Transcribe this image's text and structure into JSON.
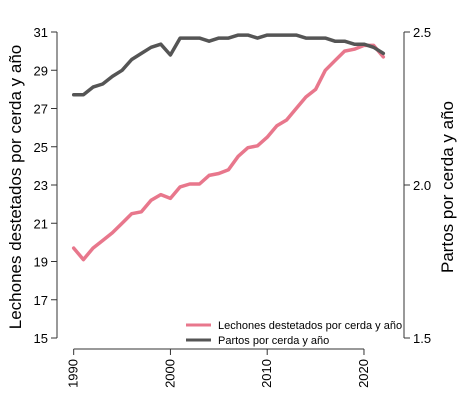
{
  "chart_data": {
    "type": "line",
    "xlabel": "",
    "ylabel_left": "Lechones destetados por cerda y año",
    "ylabel_right": "Partos por cerda y año",
    "xlim": [
      1989,
      2023
    ],
    "ylim_left": [
      15,
      31
    ],
    "ylim_right": [
      1.5,
      2.5
    ],
    "x_ticks": [
      1990,
      2000,
      2010,
      2020
    ],
    "y_ticks_left": [
      15,
      17,
      19,
      21,
      23,
      25,
      27,
      29,
      31
    ],
    "y_ticks_right": [
      1.5,
      2.0,
      2.5
    ],
    "y_tick_labels_right": [
      "1.5",
      "2.0",
      "2.5"
    ],
    "grid": false,
    "legend_position": "bottom-right",
    "series": [
      {
        "name": "Lechones destetados por cerda y año",
        "axis": "left",
        "color": "#e8778c",
        "x": [
          1990,
          1991,
          1992,
          1993,
          1994,
          1995,
          1996,
          1997,
          1998,
          1999,
          2000,
          2001,
          2002,
          2003,
          2004,
          2005,
          2006,
          2007,
          2008,
          2009,
          2010,
          2011,
          2012,
          2013,
          2014,
          2015,
          2016,
          2017,
          2018,
          2019,
          2020,
          2021,
          2022
        ],
        "values": [
          19.7,
          19.1,
          19.7,
          20.1,
          20.5,
          21.0,
          21.5,
          21.6,
          22.2,
          22.5,
          22.3,
          22.9,
          23.05,
          23.05,
          23.5,
          23.6,
          23.8,
          24.5,
          24.95,
          25.05,
          25.5,
          26.1,
          26.4,
          27.0,
          27.6,
          28.0,
          29.0,
          29.5,
          30.0,
          30.1,
          30.3,
          30.3,
          29.7
        ]
      },
      {
        "name": "Partos por cerda y año",
        "axis": "right",
        "color": "#555555",
        "x": [
          1990,
          1991,
          1992,
          1993,
          1994,
          1995,
          1996,
          1997,
          1998,
          1999,
          2000,
          2001,
          2002,
          2003,
          2004,
          2005,
          2006,
          2007,
          2008,
          2009,
          2010,
          2011,
          2012,
          2013,
          2014,
          2015,
          2016,
          2017,
          2018,
          2019,
          2020,
          2021,
          2022
        ],
        "values": [
          2.295,
          2.295,
          2.32,
          2.33,
          2.355,
          2.375,
          2.41,
          2.43,
          2.45,
          2.46,
          2.425,
          2.48,
          2.48,
          2.48,
          2.47,
          2.48,
          2.48,
          2.49,
          2.49,
          2.48,
          2.49,
          2.49,
          2.49,
          2.49,
          2.48,
          2.48,
          2.48,
          2.47,
          2.47,
          2.46,
          2.46,
          2.45,
          2.43
        ]
      }
    ]
  }
}
